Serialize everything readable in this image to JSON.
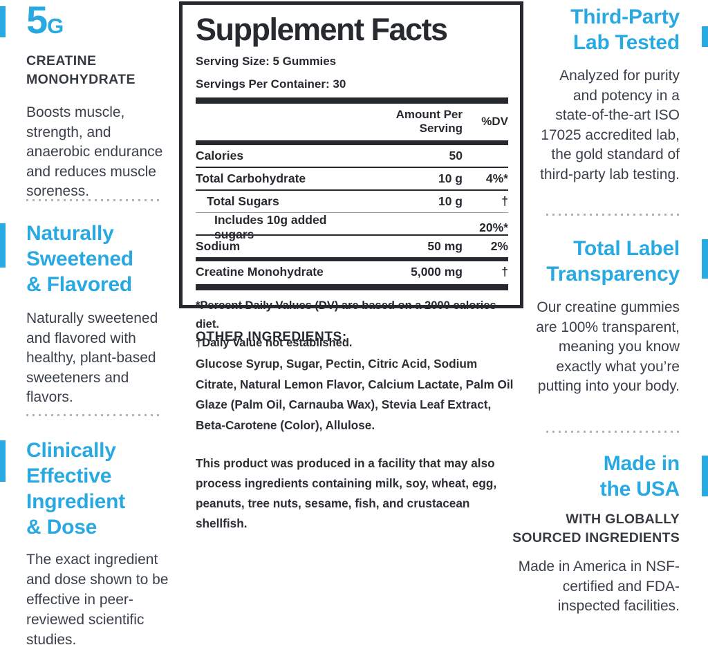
{
  "accent_color": "#29a9e1",
  "left_column": {
    "sections": [
      {
        "headline_big": "5",
        "headline_unit": "G",
        "subheading": "CREATINE MONOHYDRATE",
        "body": "Boosts muscle, strength, and anaerobic endurance and reduces muscle soreness."
      },
      {
        "heading": "Naturally Sweetened & Flavored",
        "body": "Naturally sweetened and flavored with healthy, plant-based sweeteners and flavors."
      },
      {
        "heading": "Clinically Effective Ingredient & Dose",
        "body": "The exact ingredient and dose shown to be effective in peer-reviewed scientific studies."
      }
    ]
  },
  "facts_panel": {
    "title": "Supplement Facts",
    "serving_size": "Serving Size: 5 Gummies",
    "servings_per_container": "Servings Per Container: 30",
    "columns": {
      "amount": "Amount Per Serving",
      "dv": "%DV"
    },
    "rows": [
      {
        "name": "Calories",
        "amount": "50",
        "dv": ""
      },
      {
        "name": "Total Carbohydrate",
        "amount": "10 g",
        "dv": "4%*"
      },
      {
        "name": "Total Sugars",
        "amount": "10 g",
        "dv": "†"
      },
      {
        "name": "Includes 10g added sugars",
        "amount": "",
        "dv": "20%*"
      },
      {
        "name": "Sodium",
        "amount": "50 mg",
        "dv": "2%"
      },
      {
        "name": "Creatine Monohydrate",
        "amount": "5,000 mg",
        "dv": "†"
      }
    ],
    "footnote_dv": "*Percent Daily Values (DV) are based on a 2000 calories diet.",
    "footnote_dagger": "†Daily Value not established."
  },
  "other_ingredients": {
    "heading": "OTHER INGREDIENTS:",
    "body": "Glucose Syrup, Sugar, Pectin, Citric Acid, Sodium Citrate, Natural Lemon Flavor, Calcium Lactate, Palm Oil Glaze (Palm Oil, Carnauba Wax), Stevia Leaf Extract, Beta-Carotene (Color), Allulose."
  },
  "allergen_notice": "This product was produced in a facility that may also process ingredients containing milk, soy, wheat, egg, peanuts, tree nuts, sesame, fish, and crustacean shellfish.",
  "right_column": {
    "sections": [
      {
        "heading": "Third-Party Lab Tested",
        "body": "Analyzed for purity and potency in a state-of-the-art ISO 17025 accredited lab, the gold standard of third-party lab testing."
      },
      {
        "heading": "Total Label Transparency",
        "body": "Our creatine gummies are 100% transparent, meaning you know exactly what you’re putting into your body."
      },
      {
        "heading": "Made in the USA",
        "subheading": "WITH GLOBALLY SOURCED INGREDIENTS",
        "body": "Made in America in NSF-certified and FDA-inspected facilities."
      }
    ]
  }
}
